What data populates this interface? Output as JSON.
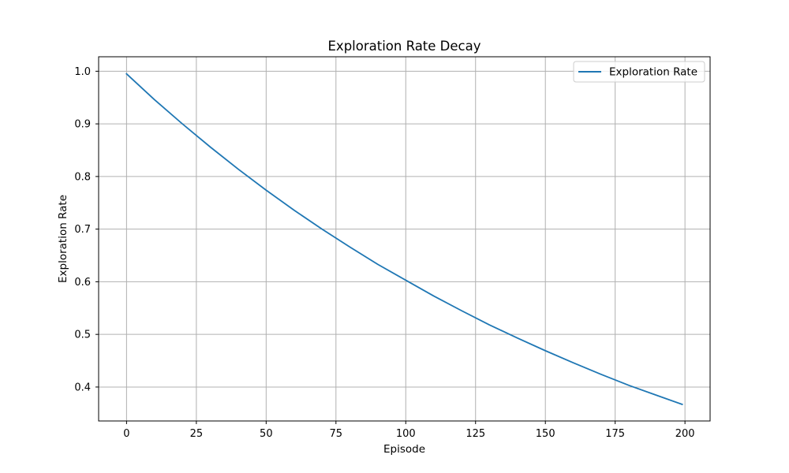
{
  "chart_data": {
    "type": "line",
    "title": "Exploration Rate Decay",
    "xlabel": "Episode",
    "ylabel": "Exploration Rate",
    "xlim": [
      -10,
      209
    ],
    "ylim": [
      0.3355,
      1.0275
    ],
    "xticks": [
      0,
      25,
      50,
      75,
      100,
      125,
      150,
      175,
      200
    ],
    "yticks": [
      0.4,
      0.5,
      0.6,
      0.7,
      0.8,
      0.9,
      1.0
    ],
    "xtick_labels": [
      "0",
      "25",
      "50",
      "75",
      "100",
      "125",
      "150",
      "175",
      "200"
    ],
    "ytick_labels": [
      "0.4",
      "0.5",
      "0.6",
      "0.7",
      "0.8",
      "0.9",
      "1.0"
    ],
    "grid": true,
    "legend_position": "top-right",
    "series": [
      {
        "name": "Exploration Rate",
        "color": "#1f77b4",
        "x": [
          0,
          10,
          20,
          30,
          40,
          50,
          60,
          70,
          80,
          90,
          100,
          110,
          120,
          130,
          140,
          150,
          160,
          170,
          180,
          190,
          199
        ],
        "y": [
          0.995,
          0.946,
          0.9,
          0.856,
          0.814,
          0.774,
          0.736,
          0.7,
          0.666,
          0.633,
          0.603,
          0.573,
          0.545,
          0.518,
          0.493,
          0.469,
          0.446,
          0.424,
          0.403,
          0.384,
          0.367
        ]
      }
    ]
  }
}
